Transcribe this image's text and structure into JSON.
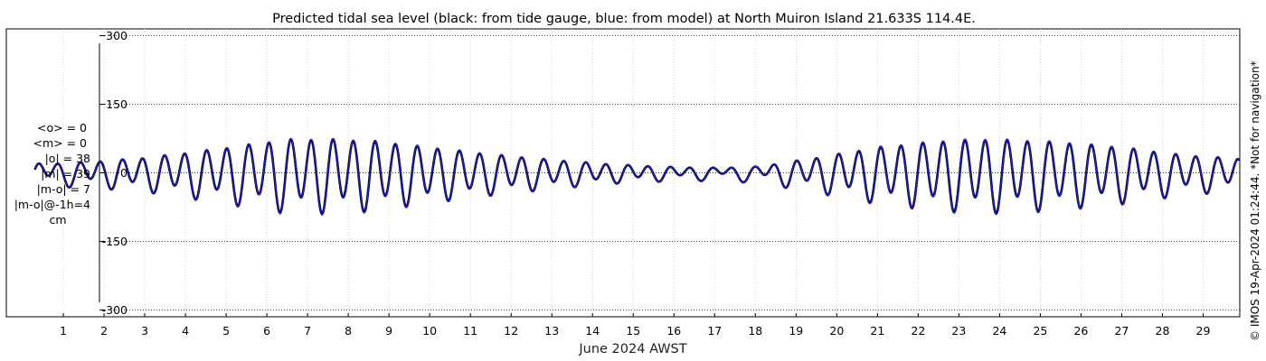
{
  "chart_data": {
    "type": "line",
    "title": "Predicted tidal sea level (black: from tide gauge, blue: from model) at North Muiron Island 21.633S 114.4E.",
    "xlabel": "June 2024 AWST",
    "ylabel": "",
    "x_unit": "day of June 2024",
    "xlim": [
      -0.4,
      29.9
    ],
    "ylim": [
      -315,
      315
    ],
    "yticks": [
      300,
      150,
      0,
      -150,
      -300
    ],
    "ytick_labels": [
      "300",
      "150",
      "0",
      "-150",
      "-300"
    ],
    "xticks": [
      1,
      2,
      3,
      4,
      5,
      6,
      7,
      8,
      9,
      10,
      11,
      12,
      13,
      14,
      15,
      16,
      17,
      18,
      19,
      20,
      21,
      22,
      23,
      24,
      25,
      26,
      27,
      28,
      29
    ],
    "xtick_labels": [
      "1",
      "2",
      "3",
      "4",
      "5",
      "6",
      "7",
      "8",
      "9",
      "10",
      "11",
      "12",
      "13",
      "14",
      "15",
      "16",
      "17",
      "18",
      "19",
      "20",
      "21",
      "22",
      "23",
      "24",
      "25",
      "26",
      "27",
      "28",
      "29"
    ],
    "grid": true,
    "tidal_model": {
      "note_units": "cm",
      "start_day": 0.3,
      "end_day": 29.9,
      "semidiurnal_period_days": 0.5175,
      "semidiurnal_phase_days": 0.37,
      "diurnal_period_days": 1.035,
      "diurnal_phase_days": 0.62,
      "envelope_day": [
        0.3,
        1.5,
        3,
        4.5,
        6.5,
        7.7,
        8.7,
        10,
        11.5,
        13,
        14.5,
        16,
        17,
        18,
        19.5,
        21,
        22.5,
        23.5,
        24.5,
        25.5,
        27,
        28.5,
        29.9
      ],
      "envelope_semidiurnal_cm": [
        18,
        22,
        32,
        48,
        72,
        72,
        68,
        55,
        40,
        28,
        18,
        12,
        10,
        12,
        32,
        55,
        68,
        72,
        70,
        66,
        55,
        38,
        30
      ],
      "envelope_diurnal_cm": [
        14,
        10,
        10,
        14,
        18,
        18,
        16,
        12,
        10,
        8,
        6,
        6,
        8,
        10,
        12,
        14,
        16,
        18,
        18,
        16,
        14,
        12,
        10
      ]
    },
    "series": [
      {
        "name": "tide gauge",
        "color": "#000000"
      },
      {
        "name": "model",
        "color": "#1a1ad0"
      }
    ]
  },
  "stats": {
    "lines": [
      "<o> = 0",
      "<m> = 0",
      "|o| = 38",
      "|m| = 39",
      "|m-o| = 7",
      "|m-o|@-1h=4",
      "cm"
    ]
  },
  "credit": "© IMOS 19-Apr-2024 01:24:44. *Not for navigation*"
}
